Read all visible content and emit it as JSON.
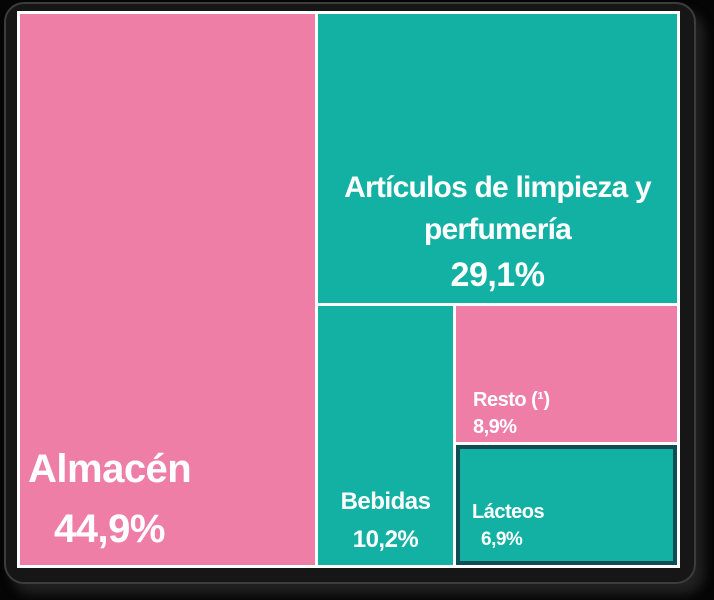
{
  "chart_data": {
    "type": "treemap",
    "title": "",
    "units": "%",
    "legend": "none",
    "items": [
      {
        "label": "Almacén",
        "value": 44.9,
        "value_display": "44,9%",
        "color": "#ef7ea6"
      },
      {
        "label": "Artículos de limpieza y perfumería",
        "value": 29.1,
        "value_display": "29,1%",
        "color": "#13b1a3"
      },
      {
        "label": "Bebidas",
        "value": 10.2,
        "value_display": "10,2%",
        "color": "#13b1a3"
      },
      {
        "label": "Resto (¹)",
        "value": 8.9,
        "value_display": "8,9%",
        "color": "#ef7ea6"
      },
      {
        "label": "Lácteos",
        "value": 6.9,
        "value_display": "6,9%",
        "color": "#13b1a3",
        "highlighted": true
      }
    ]
  },
  "display": {
    "articulos_line1": "Artículos de limpieza y",
    "articulos_line2": "perfumería"
  },
  "colors": {
    "pink": "#ef7ea6",
    "teal": "#13b1a3",
    "lacteos_border": "#0f4e54",
    "gap_line": "#ffffff",
    "frame": "#161616",
    "background": "#000000",
    "text": "#ffffff"
  }
}
